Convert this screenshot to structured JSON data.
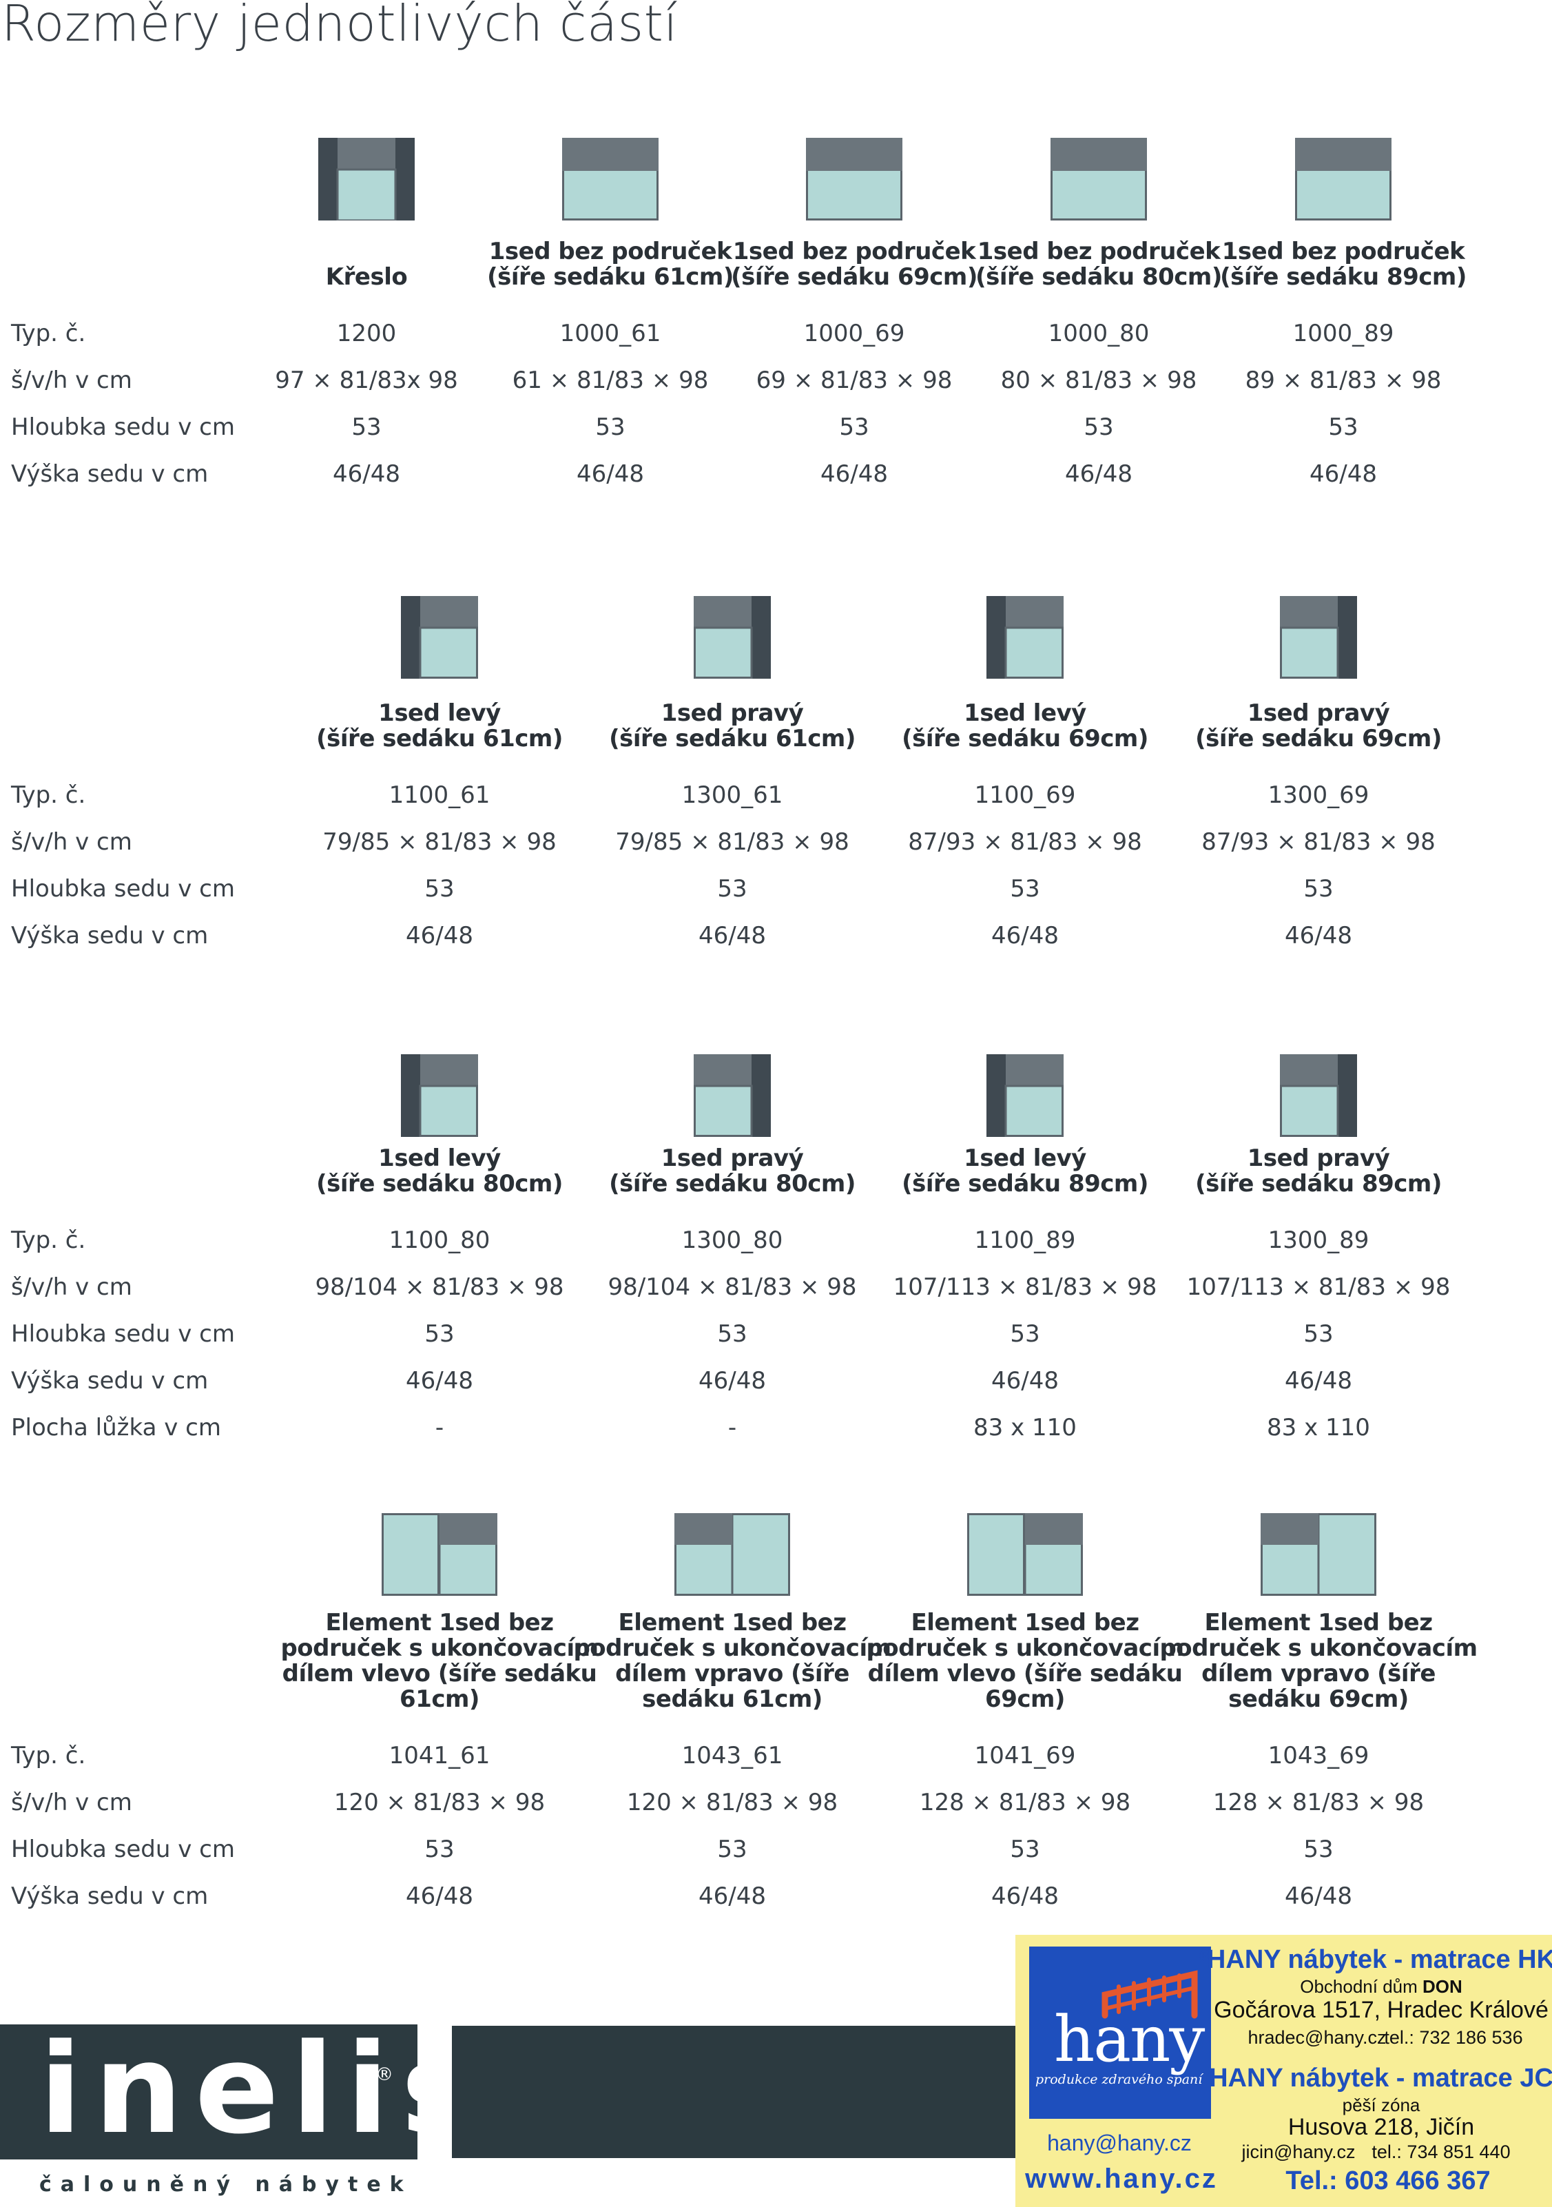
{
  "title": "Rozměry jednotlivých částí",
  "row_labels": {
    "typ": "Typ. č.",
    "svh": "š/v/h v cm",
    "hloubka": "Hloubka sedu v cm",
    "vyska": "Výška sedu v cm",
    "plocha": "Plocha lůžka v cm"
  },
  "sections": [
    {
      "items": [
        {
          "icon": "armchair-icon",
          "head": [
            "Křeslo"
          ],
          "typ": "1200",
          "svh": "97 × 81/83x 98",
          "hloubka": "53",
          "vyska": "46/48"
        },
        {
          "icon": "seat-no-arms-icon",
          "head": [
            "1sed bez područek",
            "(šíře sedáku 61cm)"
          ],
          "typ": "1000_61",
          "svh": "61 × 81/83 × 98",
          "hloubka": "53",
          "vyska": "46/48"
        },
        {
          "icon": "seat-no-arms-icon",
          "head": [
            "1sed bez područek",
            "(šíře sedáku 69cm)"
          ],
          "typ": "1000_69",
          "svh": "69 × 81/83 × 98",
          "hloubka": "53",
          "vyska": "46/48"
        },
        {
          "icon": "seat-no-arms-icon",
          "head": [
            "1sed bez područek",
            "(šíře sedáku 80cm)"
          ],
          "typ": "1000_80",
          "svh": "80 × 81/83 × 98",
          "hloubka": "53",
          "vyska": "46/48"
        },
        {
          "icon": "seat-no-arms-icon",
          "head": [
            "1sed bez područek",
            "(šíře sedáku 89cm)"
          ],
          "typ": "1000_89",
          "svh": "89 × 81/83 × 98",
          "hloubka": "53",
          "vyska": "46/48"
        }
      ]
    },
    {
      "items": [
        {
          "icon": "seat-left-arm-icon",
          "head": [
            "1sed levý",
            "(šíře sedáku 61cm)"
          ],
          "typ": "1100_61",
          "svh": "79/85 × 81/83 × 98",
          "hloubka": "53",
          "vyska": "46/48"
        },
        {
          "icon": "seat-right-arm-icon",
          "head": [
            "1sed pravý",
            "(šíře sedáku 61cm)"
          ],
          "typ": "1300_61",
          "svh": "79/85 × 81/83 × 98",
          "hloubka": "53",
          "vyska": "46/48"
        },
        {
          "icon": "seat-left-arm-icon",
          "head": [
            "1sed levý",
            "(šíře sedáku 69cm)"
          ],
          "typ": "1100_69",
          "svh": "87/93 × 81/83 × 98",
          "hloubka": "53",
          "vyska": "46/48"
        },
        {
          "icon": "seat-right-arm-icon",
          "head": [
            "1sed pravý",
            "(šíře sedáku 69cm)"
          ],
          "typ": "1300_69",
          "svh": "87/93 × 81/83 × 98",
          "hloubka": "53",
          "vyska": "46/48"
        }
      ]
    },
    {
      "items": [
        {
          "icon": "seat-left-arm-icon",
          "head": [
            "1sed levý",
            "(šíře sedáku 80cm)"
          ],
          "typ": "1100_80",
          "svh": "98/104 × 81/83 × 98",
          "hloubka": "53",
          "vyska": "46/48",
          "plocha": "-"
        },
        {
          "icon": "seat-right-arm-icon",
          "head": [
            "1sed pravý",
            "(šíře sedáku 80cm)"
          ],
          "typ": "1300_80",
          "svh": "98/104 × 81/83 × 98",
          "hloubka": "53",
          "vyska": "46/48",
          "plocha": "-"
        },
        {
          "icon": "seat-left-arm-icon",
          "head": [
            "1sed levý",
            "(šíře sedáku 89cm)"
          ],
          "typ": "1100_89",
          "svh": "107/113 × 81/83 × 98",
          "hloubka": "53",
          "vyska": "46/48",
          "plocha": "83 x 110"
        },
        {
          "icon": "seat-right-arm-icon",
          "head": [
            "1sed pravý",
            "(šíře sedáku 89cm)"
          ],
          "typ": "1300_89",
          "svh": "107/113 × 81/83 × 98",
          "hloubka": "53",
          "vyska": "46/48",
          "plocha": "83 x 110"
        }
      ]
    },
    {
      "items": [
        {
          "icon": "element-end-left-icon",
          "head": [
            "Element 1sed bez",
            "područek s ukončovacím",
            "dílem vlevo (šíře sedáku",
            "61cm)"
          ],
          "typ": "1041_61",
          "svh": "120 × 81/83 × 98",
          "hloubka": "53",
          "vyska": "46/48"
        },
        {
          "icon": "element-end-right-icon",
          "head": [
            "Element 1sed bez",
            "područek s ukončovacím",
            "dílem vpravo (šíře",
            "sedáku 61cm)"
          ],
          "typ": "1043_61",
          "svh": "120 × 81/83 × 98",
          "hloubka": "53",
          "vyska": "46/48"
        },
        {
          "icon": "element-end-left-icon",
          "head": [
            "Element 1sed bez",
            "područek s ukončovacím",
            "dílem vlevo (šíře sedáku",
            "69cm)"
          ],
          "typ": "1041_69",
          "svh": "128 × 81/83 × 98",
          "hloubka": "53",
          "vyska": "46/48"
        },
        {
          "icon": "element-end-right-icon",
          "head": [
            "Element 1sed bez",
            "područek s ukončovacím",
            "dílem vpravo (šíře",
            "sedáku 69cm)"
          ],
          "typ": "1043_69",
          "svh": "128 × 81/83 × 98",
          "hloubka": "53",
          "vyska": "46/48"
        }
      ]
    }
  ],
  "colors": {
    "seat": "#b2d8d6",
    "back": "#6b757c",
    "arm": "#3f4951",
    "outline": "#5b656c"
  },
  "footer": {
    "logo": "inelis",
    "logo_mark": "®",
    "tagline": "čalouněný nábytek",
    "ad": {
      "hany_word": "hany",
      "hany_sub": "produkce zdravého spaní",
      "hany_reg": "®",
      "hk_title": "HANY nábytek - matrace HK",
      "hk_line1_a": "Obchodní dům ",
      "hk_line1_b": "DON",
      "hk_addr": "Gočárova 1517, Hradec Králové",
      "hk_mail": "hradec@hany.cz",
      "hk_tel": "tel.: 732 186 536",
      "jc_title": "HANY nábytek - matrace JC",
      "jc_line1": "pěší zóna",
      "jc_addr": "Husova 218, Jičín",
      "jc_mail": "jicin@hany.cz",
      "jc_tel": "tel.: 734 851 440",
      "mail": "hany@hany.cz",
      "web": "www.hany.cz",
      "tel": "Tel.: 603 466 367"
    }
  }
}
